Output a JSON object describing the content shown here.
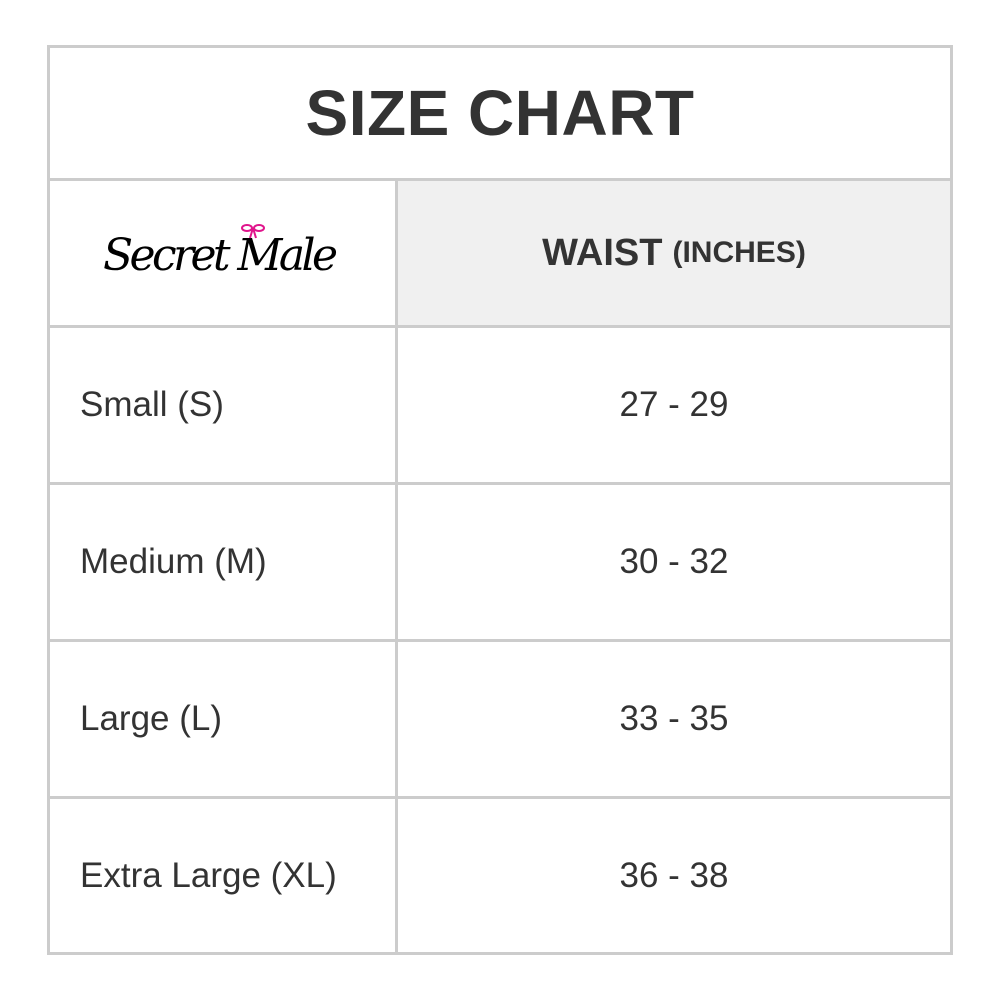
{
  "title": "SIZE CHART",
  "brand_logo_text": "Secret Male",
  "colors": {
    "border": "#cccccc",
    "header_bg": "#f0f0f0",
    "text": "#333333",
    "bow_accent": "#e0158c"
  },
  "header": {
    "measure": "WAIST",
    "unit": "(INCHES)"
  },
  "rows": [
    {
      "size": "Small (S)",
      "waist": "27 - 29"
    },
    {
      "size": "Medium (M)",
      "waist": "30 - 32"
    },
    {
      "size": "Large (L)",
      "waist": "33 - 35"
    },
    {
      "size": "Extra Large (XL)",
      "waist": "36 - 38"
    }
  ]
}
